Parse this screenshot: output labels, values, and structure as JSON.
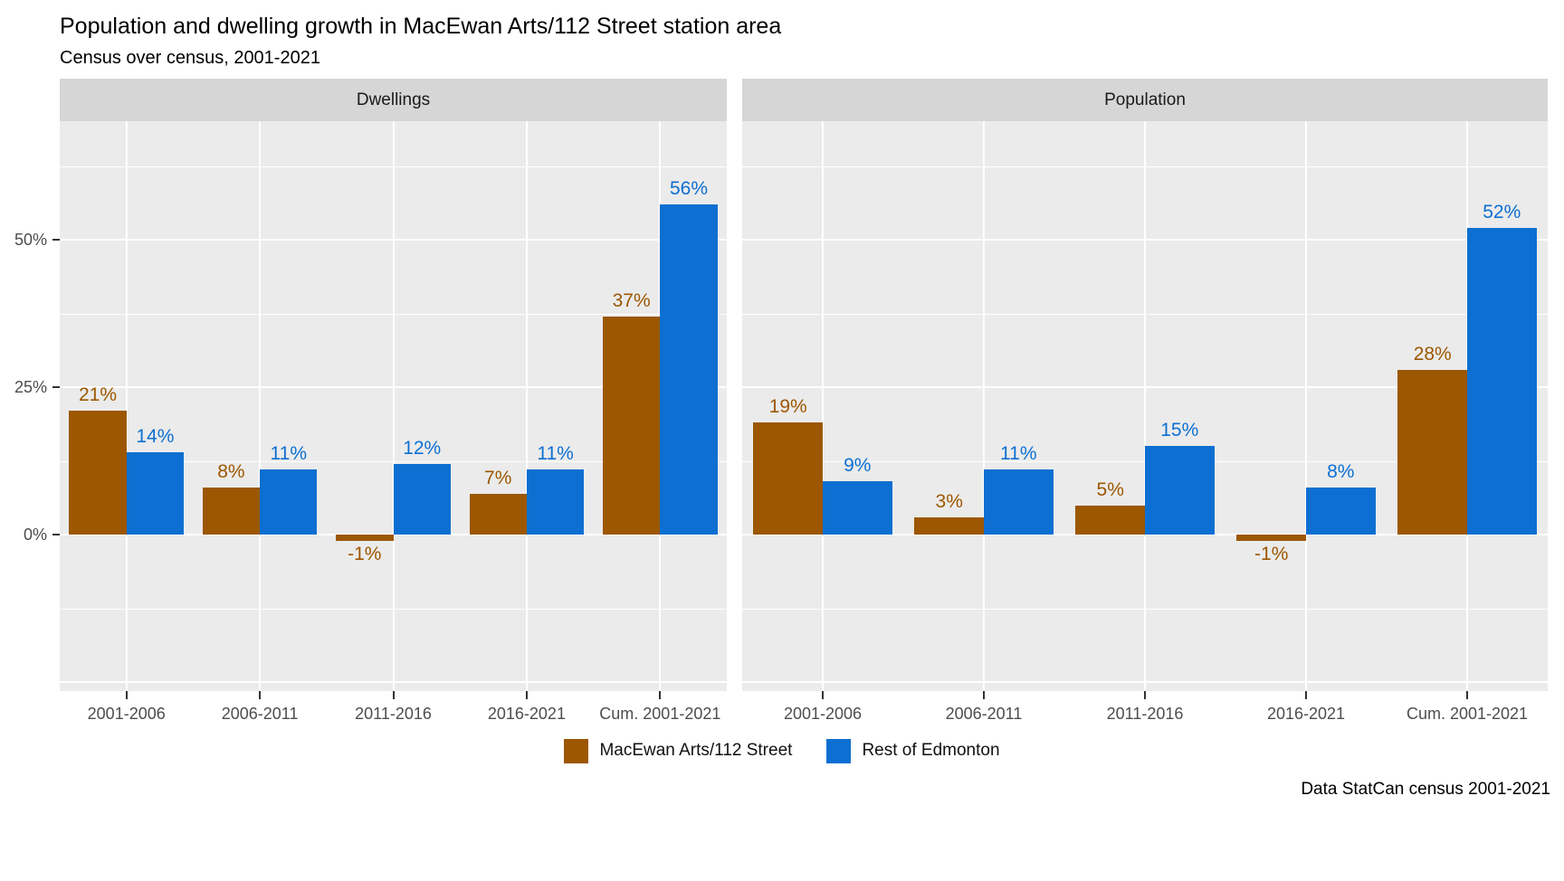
{
  "title": "Population and dwelling growth in MacEwan Arts/112 Street station area",
  "subtitle": "Census over census, 2001-2021",
  "caption": "Data StatCan census 2001-2021",
  "legend": {
    "items": [
      {
        "label": "MacEwan Arts/112 Street",
        "color": "#9C5700"
      },
      {
        "label": "Rest of Edmonton",
        "color": "#0D6FD1"
      }
    ]
  },
  "chart_data": {
    "type": "bar",
    "categories": [
      "2001-2006",
      "2006-2011",
      "2011-2016",
      "2016-2021",
      "Cum. 2001-2021"
    ],
    "series": [
      {
        "name": "MacEwan Arts/112 Street",
        "color": "#9C5700"
      },
      {
        "name": "Rest of Edmonton",
        "color": "#0D6FD1"
      }
    ],
    "facets": [
      {
        "title": "Dwellings",
        "values": [
          [
            21,
            8,
            -1,
            7,
            37
          ],
          [
            14,
            11,
            12,
            11,
            56
          ]
        ]
      },
      {
        "title": "Population",
        "values": [
          [
            19,
            3,
            5,
            -1,
            28
          ],
          [
            9,
            11,
            15,
            8,
            52
          ]
        ]
      }
    ],
    "unit": "%",
    "data_labels": true,
    "ylabel": "",
    "xlabel": "",
    "ylim": [
      -26.5,
      70.1
    ],
    "y_ticks": [
      {
        "label": "0%",
        "value": 0
      },
      {
        "label": "25%",
        "value": 25
      },
      {
        "label": "50%",
        "value": 50
      }
    ],
    "major_gridlines": [
      -25,
      0,
      25,
      50
    ],
    "minor_gridlines": [
      -12.5,
      12.5,
      37.5,
      62.5
    ],
    "grid": "on",
    "legend_position": "bottom",
    "panel_background": "#EBEBEB",
    "strip_background": "#D6D6D6"
  }
}
